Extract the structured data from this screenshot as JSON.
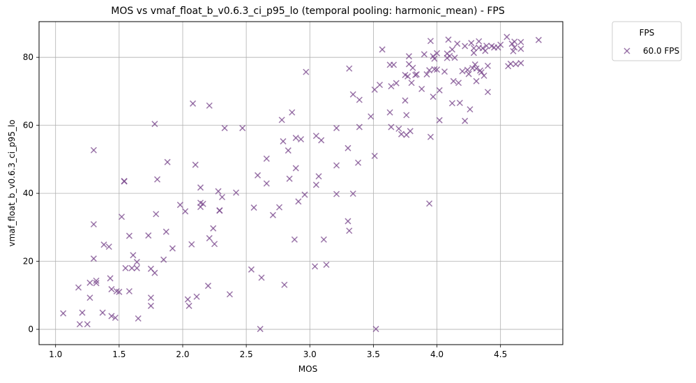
{
  "chart_data": {
    "type": "scatter",
    "title": "MOS vs vmaf_float_b_v0.6.3_ci_p95_lo (temporal pooling: harmonic_mean) - FPS",
    "xlabel": "MOS",
    "ylabel": "vmaf_float_b_v0.6.3_ci_p95_lo",
    "xlim": [
      0.87,
      4.99
    ],
    "ylim": [
      -4.5,
      90.5
    ],
    "xticks": [
      1.0,
      1.5,
      2.0,
      2.5,
      3.0,
      3.5,
      4.0,
      4.5
    ],
    "xtick_labels": [
      "1.0",
      "1.5",
      "2.0",
      "2.5",
      "3.0",
      "3.5",
      "4.0",
      "4.5"
    ],
    "yticks": [
      0,
      20,
      40,
      60,
      80
    ],
    "ytick_labels": [
      "0",
      "20",
      "40",
      "60",
      "80"
    ],
    "grid": true,
    "marker": "x",
    "legend": {
      "title": "FPS",
      "placement": "outside-upper-right"
    },
    "series": [
      {
        "name": "60.0 FPS",
        "color": "#7b4a8e",
        "points": [
          [
            1.06,
            4.7
          ],
          [
            1.18,
            12.3
          ],
          [
            1.19,
            1.5
          ],
          [
            1.21,
            4.9
          ],
          [
            1.25,
            1.5
          ],
          [
            1.27,
            9.3
          ],
          [
            1.27,
            13.7
          ],
          [
            1.3,
            52.7
          ],
          [
            1.3,
            30.9
          ],
          [
            1.3,
            20.8
          ],
          [
            1.32,
            14.3
          ],
          [
            1.32,
            13.6
          ],
          [
            1.37,
            4.9
          ],
          [
            1.38,
            24.9
          ],
          [
            1.42,
            24.3
          ],
          [
            1.43,
            15.0
          ],
          [
            1.44,
            11.8
          ],
          [
            1.44,
            3.9
          ],
          [
            1.47,
            3.4
          ],
          [
            1.48,
            11.2
          ],
          [
            1.5,
            11.0
          ],
          [
            1.52,
            33.1
          ],
          [
            1.54,
            43.6
          ],
          [
            1.54,
            43.5
          ],
          [
            1.55,
            18.0
          ],
          [
            1.58,
            27.5
          ],
          [
            1.58,
            11.2
          ],
          [
            1.6,
            18.0
          ],
          [
            1.61,
            21.8
          ],
          [
            1.64,
            18.0
          ],
          [
            1.64,
            19.8
          ],
          [
            1.65,
            3.2
          ],
          [
            1.73,
            27.6
          ],
          [
            1.75,
            17.8
          ],
          [
            1.75,
            9.3
          ],
          [
            1.75,
            6.9
          ],
          [
            1.78,
            60.4
          ],
          [
            1.78,
            16.6
          ],
          [
            1.79,
            33.9
          ],
          [
            1.8,
            44.1
          ],
          [
            1.85,
            20.5
          ],
          [
            1.87,
            28.7
          ],
          [
            1.88,
            49.2
          ],
          [
            1.92,
            23.8
          ],
          [
            1.98,
            36.6
          ],
          [
            2.02,
            34.7
          ],
          [
            2.04,
            8.8
          ],
          [
            2.05,
            6.9
          ],
          [
            2.07,
            25.0
          ],
          [
            2.08,
            66.4
          ],
          [
            2.1,
            48.4
          ],
          [
            2.11,
            9.6
          ],
          [
            2.14,
            41.7
          ],
          [
            2.14,
            37.2
          ],
          [
            2.14,
            36.0
          ],
          [
            2.16,
            36.9
          ],
          [
            2.2,
            12.8
          ],
          [
            2.21,
            65.8
          ],
          [
            2.21,
            26.8
          ],
          [
            2.24,
            29.7
          ],
          [
            2.25,
            25.1
          ],
          [
            2.28,
            40.6
          ],
          [
            2.29,
            35.0
          ],
          [
            2.29,
            34.9
          ],
          [
            2.31,
            38.9
          ],
          [
            2.33,
            59.2
          ],
          [
            2.37,
            10.3
          ],
          [
            2.42,
            40.2
          ],
          [
            2.47,
            59.2
          ],
          [
            2.54,
            17.6
          ],
          [
            2.56,
            35.8
          ],
          [
            2.59,
            45.3
          ],
          [
            2.61,
            0.1
          ],
          [
            2.62,
            15.2
          ],
          [
            2.66,
            50.2
          ],
          [
            2.66,
            42.9
          ],
          [
            2.71,
            33.6
          ],
          [
            2.76,
            35.9
          ],
          [
            2.78,
            61.6
          ],
          [
            2.79,
            55.3
          ],
          [
            2.8,
            13.1
          ],
          [
            2.83,
            52.6
          ],
          [
            2.84,
            44.3
          ],
          [
            2.86,
            63.8
          ],
          [
            2.88,
            26.4
          ],
          [
            2.89,
            47.4
          ],
          [
            2.89,
            56.3
          ],
          [
            2.91,
            37.6
          ],
          [
            2.93,
            55.9
          ],
          [
            2.96,
            39.6
          ],
          [
            2.97,
            75.7
          ],
          [
            3.04,
            18.5
          ],
          [
            3.05,
            42.5
          ],
          [
            3.05,
            56.9
          ],
          [
            3.07,
            45.0
          ],
          [
            3.09,
            55.6
          ],
          [
            3.11,
            26.4
          ],
          [
            3.13,
            19.0
          ],
          [
            3.21,
            48.2
          ],
          [
            3.21,
            59.2
          ],
          [
            3.21,
            39.8
          ],
          [
            3.3,
            53.3
          ],
          [
            3.3,
            31.8
          ],
          [
            3.31,
            76.7
          ],
          [
            3.31,
            29.0
          ],
          [
            3.34,
            39.9
          ],
          [
            3.34,
            69.1
          ],
          [
            3.38,
            49.0
          ],
          [
            3.39,
            67.5
          ],
          [
            3.39,
            59.5
          ],
          [
            3.48,
            62.6
          ],
          [
            3.51,
            70.5
          ],
          [
            3.51,
            51.0
          ],
          [
            3.52,
            0.1
          ],
          [
            3.55,
            71.9
          ],
          [
            3.57,
            82.3
          ],
          [
            3.63,
            63.8
          ],
          [
            3.63,
            77.8
          ],
          [
            3.64,
            71.5
          ],
          [
            3.64,
            59.5
          ],
          [
            3.66,
            77.8
          ],
          [
            3.68,
            72.4
          ],
          [
            3.7,
            59.0
          ],
          [
            3.72,
            57.4
          ],
          [
            3.75,
            74.8
          ],
          [
            3.75,
            67.3
          ],
          [
            3.76,
            63.0
          ],
          [
            3.76,
            57.2
          ],
          [
            3.77,
            74.4
          ],
          [
            3.78,
            80.3
          ],
          [
            3.78,
            78.0
          ],
          [
            3.79,
            58.3
          ],
          [
            3.8,
            72.5
          ],
          [
            3.81,
            76.9
          ],
          [
            3.83,
            74.8
          ],
          [
            3.84,
            75.0
          ],
          [
            3.88,
            70.7
          ],
          [
            3.9,
            80.9
          ],
          [
            3.92,
            75.0
          ],
          [
            3.94,
            76.2
          ],
          [
            3.94,
            37.0
          ],
          [
            3.95,
            84.8
          ],
          [
            3.95,
            56.6
          ],
          [
            3.97,
            80.3
          ],
          [
            3.97,
            68.4
          ],
          [
            3.98,
            79.6
          ],
          [
            3.98,
            76.5
          ],
          [
            4.0,
            81.2
          ],
          [
            4.0,
            76.4
          ],
          [
            4.02,
            70.3
          ],
          [
            4.02,
            61.5
          ],
          [
            4.06,
            75.8
          ],
          [
            4.08,
            81.1
          ],
          [
            4.08,
            79.8
          ],
          [
            4.09,
            85.2
          ],
          [
            4.1,
            80.4
          ],
          [
            4.12,
            66.5
          ],
          [
            4.12,
            82.3
          ],
          [
            4.13,
            73.0
          ],
          [
            4.14,
            79.9
          ],
          [
            4.16,
            84.0
          ],
          [
            4.17,
            72.5
          ],
          [
            4.18,
            66.6
          ],
          [
            4.2,
            75.9
          ],
          [
            4.22,
            83.3
          ],
          [
            4.22,
            61.3
          ],
          [
            4.24,
            76.3
          ],
          [
            4.25,
            75.1
          ],
          [
            4.26,
            64.7
          ],
          [
            4.27,
            84.2
          ],
          [
            4.28,
            76.8
          ],
          [
            4.29,
            82.7
          ],
          [
            4.29,
            81.3
          ],
          [
            4.3,
            77.9
          ],
          [
            4.31,
            76.7
          ],
          [
            4.31,
            73.0
          ],
          [
            4.33,
            84.7
          ],
          [
            4.33,
            82.8
          ],
          [
            4.34,
            76.1
          ],
          [
            4.35,
            75.6
          ],
          [
            4.36,
            82.7
          ],
          [
            4.37,
            74.6
          ],
          [
            4.38,
            81.9
          ],
          [
            4.39,
            83.4
          ],
          [
            4.4,
            77.5
          ],
          [
            4.4,
            69.8
          ],
          [
            4.43,
            83.3
          ],
          [
            4.45,
            82.9
          ],
          [
            4.48,
            82.9
          ],
          [
            4.5,
            83.7
          ],
          [
            4.55,
            86.0
          ],
          [
            4.56,
            77.4
          ],
          [
            4.58,
            78.1
          ],
          [
            4.59,
            84.0
          ],
          [
            4.6,
            81.8
          ],
          [
            4.61,
            82.9
          ],
          [
            4.61,
            84.6
          ],
          [
            4.62,
            78.0
          ],
          [
            4.66,
            84.5
          ],
          [
            4.66,
            82.5
          ],
          [
            4.66,
            78.3
          ],
          [
            4.8,
            85.1
          ]
        ]
      }
    ]
  }
}
